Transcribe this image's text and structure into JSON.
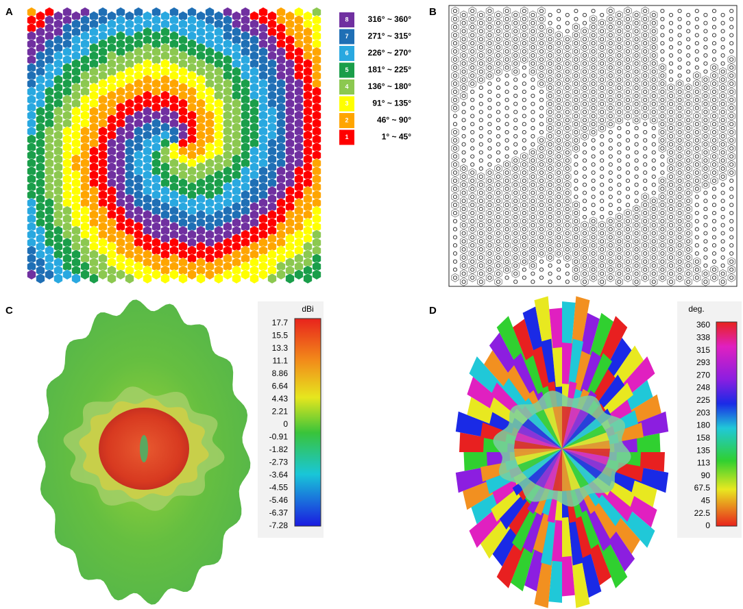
{
  "panels": [
    {
      "label": "A",
      "legend": [
        {
          "code": "8",
          "range": "316° ~ 360°",
          "color": "#7030a0"
        },
        {
          "code": "7",
          "range": "271° ~ 315°",
          "color": "#1f6fb5"
        },
        {
          "code": "6",
          "range": "226° ~ 270°",
          "color": "#29a8e0"
        },
        {
          "code": "5",
          "range": "181° ~ 225°",
          "color": "#1a9e4a"
        },
        {
          "code": "4",
          "range": "136° ~ 180°",
          "color": "#8cc850"
        },
        {
          "code": "3",
          "range": "91° ~ 135°",
          "color": "#ffff00"
        },
        {
          "code": "2",
          "range": "46° ~ 90°",
          "color": "#ffa500"
        },
        {
          "code": "1",
          "range": "1° ~ 45°",
          "color": "#ff0000"
        }
      ]
    },
    {
      "label": "B"
    },
    {
      "label": "C",
      "colorbar": {
        "unit": "dBi",
        "ticks": [
          "17.7",
          "15.5",
          "13.3",
          "11.1",
          "8.86",
          "6.64",
          "4.43",
          "2.21",
          "0",
          "-0.91",
          "-1.82",
          "-2.73",
          "-3.64",
          "-4.55",
          "-5.46",
          "-6.37",
          "-7.28"
        ]
      }
    },
    {
      "label": "D",
      "colorbar": {
        "unit": "deg.",
        "ticks": [
          "360",
          "338",
          "315",
          "293",
          "270",
          "248",
          "225",
          "203",
          "180",
          "158",
          "135",
          "113",
          "90",
          "67.5",
          "45",
          "22.5",
          "0"
        ]
      }
    }
  ]
}
